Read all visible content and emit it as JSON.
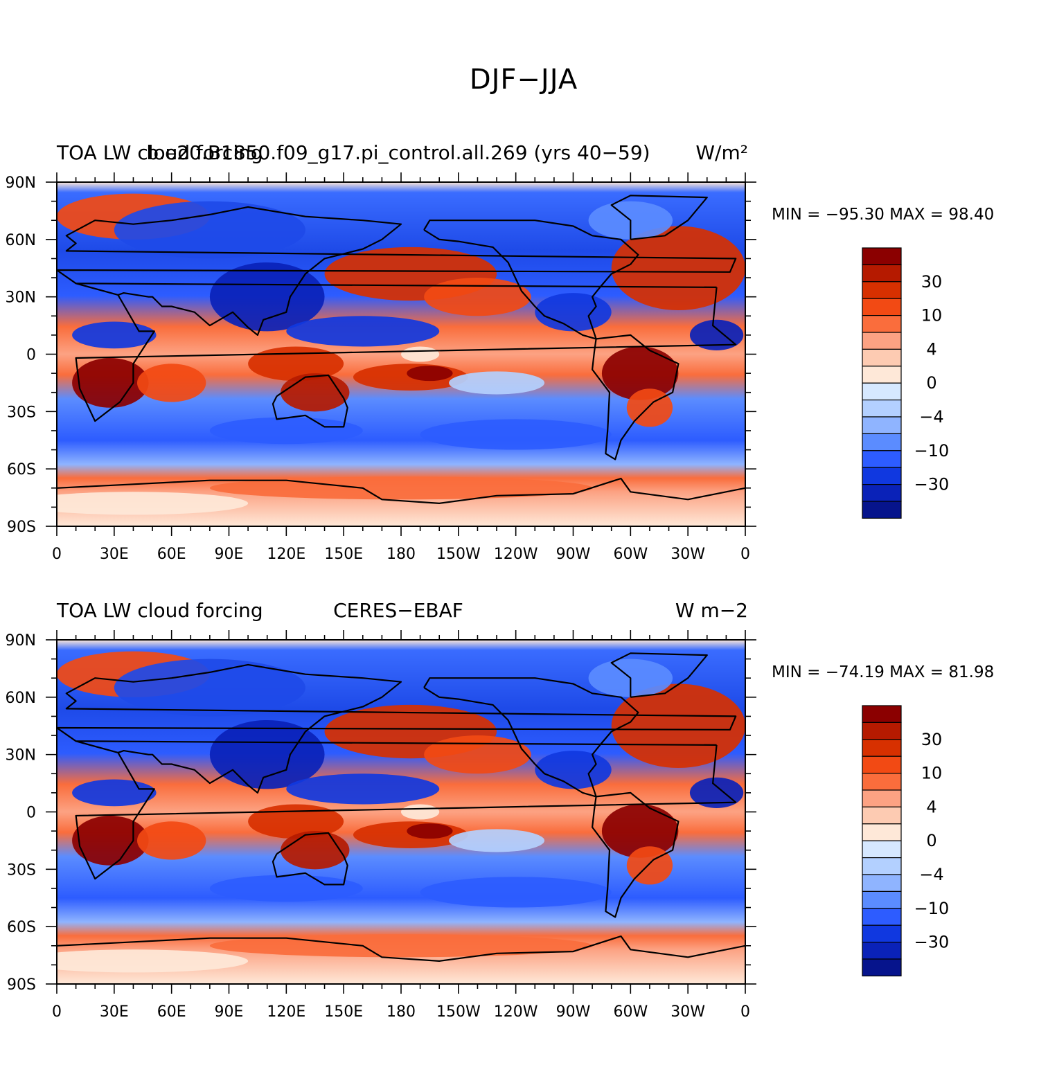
{
  "figure": {
    "title": "DJF−JJA"
  },
  "chart_data": [
    {
      "type": "heatmap",
      "left_label": "TOA LW cloud forcing",
      "center_label": "b.e20.B1850.f09_g17.pi_control.all.269 (yrs 40−59)",
      "units": "W/m²",
      "min_max": "MIN = −95.30  MAX =   98.40",
      "lat_ticks": [
        "90N",
        "60N",
        "30N",
        "0",
        "30S",
        "60S",
        "90S"
      ],
      "lon_ticks": [
        "0",
        "30E",
        "60E",
        "90E",
        "120E",
        "150E",
        "180",
        "150W",
        "120W",
        "90W",
        "60W",
        "30W",
        "0"
      ],
      "ylim": [
        -90,
        90
      ],
      "xlim": [
        0,
        360
      ]
    },
    {
      "type": "heatmap",
      "left_label": "TOA LW cloud forcing",
      "center_label": "CERES−EBAF",
      "units": "W m−2",
      "min_max": "MIN = −74.19  MAX =   81.98",
      "lat_ticks": [
        "90N",
        "60N",
        "30N",
        "0",
        "30S",
        "60S",
        "90S"
      ],
      "lon_ticks": [
        "0",
        "30E",
        "60E",
        "90E",
        "120E",
        "150E",
        "180",
        "150W",
        "120W",
        "90W",
        "60W",
        "30W",
        "0"
      ],
      "ylim": [
        -90,
        90
      ],
      "xlim": [
        0,
        360
      ]
    }
  ],
  "colorbar": {
    "colors": [
      "#8b0000",
      "#b51a00",
      "#d73000",
      "#f24a14",
      "#fa6d3c",
      "#fca283",
      "#fdcbb2",
      "#fee8d8",
      "#d6e8ff",
      "#b3d0ff",
      "#8fb4ff",
      "#5b8cff",
      "#2d5cff",
      "#1038e0",
      "#0a22b8",
      "#06148c"
    ],
    "labels": [
      "30",
      "10",
      "4",
      "0",
      "−4",
      "−10",
      "−30"
    ]
  }
}
